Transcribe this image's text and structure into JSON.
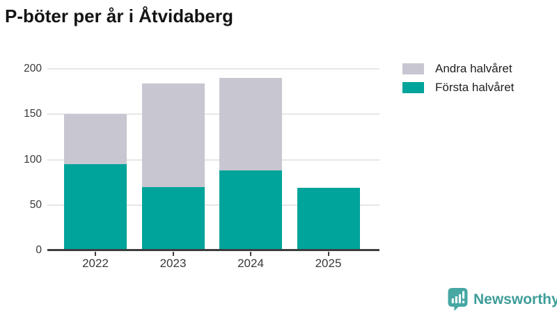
{
  "title": "P-böter per år i Åtvidaberg",
  "colors": {
    "first_half": "#00a49a",
    "second_half": "#c8c6d1",
    "axis": "#3d3d3d",
    "gridline": "#e6e6e6",
    "tick_text": "#383838",
    "title_text": "#141414",
    "logo_teal": "#46a7a3",
    "logo_text_teal": "#3e9d99"
  },
  "legend": {
    "items": [
      {
        "label": "Andra halvåret",
        "color": "#c8c6d1"
      },
      {
        "label": "Första halvåret",
        "color": "#00a49a"
      }
    ]
  },
  "logo": {
    "text": "Newsworthy"
  },
  "chart_data": {
    "type": "bar",
    "stacked": true,
    "title": "P-böter per år i Åtvidaberg",
    "categories": [
      "2022",
      "2023",
      "2024",
      "2025"
    ],
    "series": [
      {
        "name": "Första halvåret",
        "color": "#00a49a",
        "values": [
          95,
          70,
          88,
          69
        ]
      },
      {
        "name": "Andra halvåret",
        "color": "#c8c6d1",
        "values": [
          55,
          114,
          102,
          0
        ]
      }
    ],
    "totals": [
      150,
      184,
      190,
      69
    ],
    "xlabel": "",
    "ylabel": "",
    "ylim": [
      0,
      200
    ],
    "yticks": [
      0,
      50,
      100,
      150,
      200
    ],
    "grid": true,
    "legend_position": "top-right"
  }
}
